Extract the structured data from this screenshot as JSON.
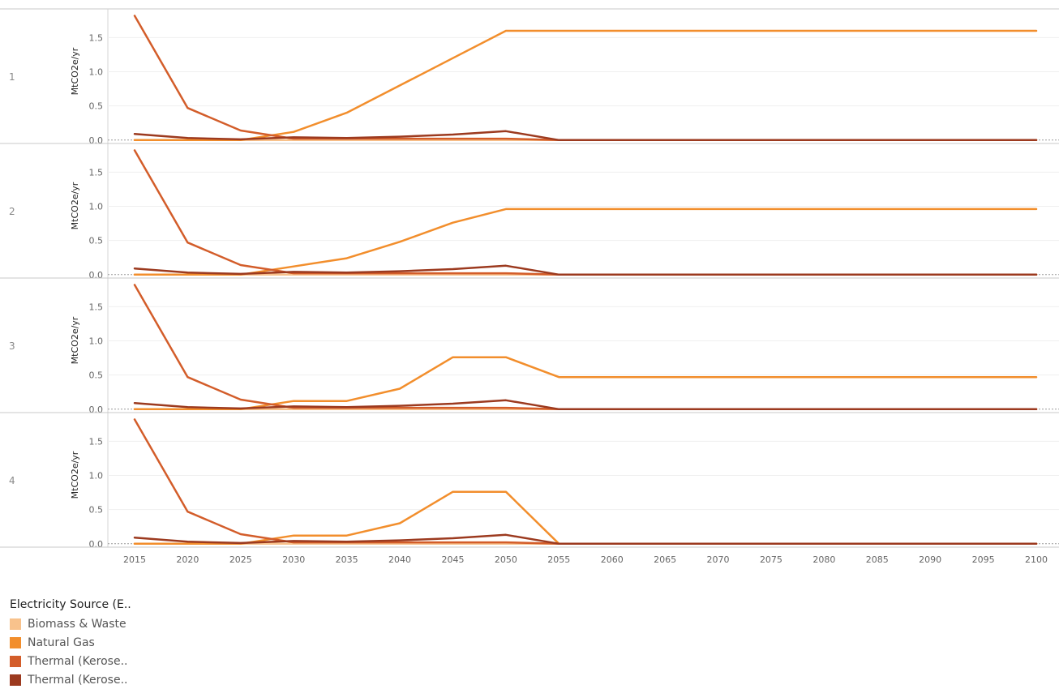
{
  "chart_data": {
    "type": "line",
    "ylabel": "MtCO2e/yr",
    "yticks": [
      0.0,
      0.5,
      1.0,
      1.5
    ],
    "ytick_labels": [
      "0.0",
      "0.5",
      "1.0",
      "1.5"
    ],
    "ylim": [
      -0.05,
      1.92
    ],
    "x": [
      2015,
      2020,
      2025,
      2030,
      2035,
      2040,
      2045,
      2050,
      2055,
      2060,
      2065,
      2070,
      2075,
      2080,
      2085,
      2090,
      2095,
      2100
    ],
    "x_tick_labels": [
      "2015",
      "2020",
      "2025",
      "2030",
      "2035",
      "2040",
      "2045",
      "2050",
      "2055",
      "2060",
      "2065",
      "2070",
      "2075",
      "2080",
      "2085",
      "2090",
      "2095",
      "2100"
    ],
    "grid": true,
    "legend": {
      "title": "Electricity Source (E..",
      "position": "bottom-left",
      "entries": [
        {
          "label": "Biomass & Waste",
          "color": "#f8c28c"
        },
        {
          "label": "Natural Gas",
          "color": "#f28e2c"
        },
        {
          "label": "Thermal (Kerose..",
          "color": "#d35d2a"
        },
        {
          "label": "Thermal (Kerose..",
          "color": "#9c3a1f"
        }
      ]
    },
    "panels": [
      {
        "row_label": "1",
        "series": [
          {
            "color": "#f8c28c",
            "values": [
              0,
              0,
              0,
              0,
              0,
              0,
              0,
              0,
              0,
              0,
              0,
              0,
              0,
              0,
              0,
              0,
              0,
              0
            ]
          },
          {
            "color": "#f28e2c",
            "values": [
              0,
              0,
              0,
              0.12,
              0.4,
              0.8,
              1.2,
              1.6,
              1.6,
              1.6,
              1.6,
              1.6,
              1.6,
              1.6,
              1.6,
              1.6,
              1.6,
              1.6
            ]
          },
          {
            "color": "#d35d2a",
            "values": [
              1.82,
              0.47,
              0.14,
              0.02,
              0.02,
              0.02,
              0.02,
              0.02,
              0,
              0,
              0,
              0,
              0,
              0,
              0,
              0,
              0,
              0
            ]
          },
          {
            "color": "#9c3a1f",
            "values": [
              0.09,
              0.03,
              0.01,
              0.04,
              0.03,
              0.05,
              0.08,
              0.13,
              0,
              0,
              0,
              0,
              0,
              0,
              0,
              0,
              0,
              0
            ]
          }
        ]
      },
      {
        "row_label": "2",
        "series": [
          {
            "color": "#f8c28c",
            "values": [
              0,
              0,
              0,
              0,
              0,
              0,
              0,
              0,
              0,
              0,
              0,
              0,
              0,
              0,
              0,
              0,
              0,
              0
            ]
          },
          {
            "color": "#f28e2c",
            "values": [
              0,
              0,
              0,
              0.12,
              0.24,
              0.48,
              0.76,
              0.96,
              0.96,
              0.96,
              0.96,
              0.96,
              0.96,
              0.96,
              0.96,
              0.96,
              0.96,
              0.96
            ]
          },
          {
            "color": "#d35d2a",
            "values": [
              1.82,
              0.47,
              0.14,
              0.02,
              0.02,
              0.02,
              0.02,
              0.02,
              0,
              0,
              0,
              0,
              0,
              0,
              0,
              0,
              0,
              0
            ]
          },
          {
            "color": "#9c3a1f",
            "values": [
              0.09,
              0.03,
              0.01,
              0.04,
              0.03,
              0.05,
              0.08,
              0.13,
              0,
              0,
              0,
              0,
              0,
              0,
              0,
              0,
              0,
              0
            ]
          }
        ]
      },
      {
        "row_label": "3",
        "series": [
          {
            "color": "#f8c28c",
            "values": [
              0,
              0,
              0,
              0,
              0,
              0,
              0,
              0,
              0,
              0,
              0,
              0,
              0,
              0,
              0,
              0,
              0,
              0
            ]
          },
          {
            "color": "#f28e2c",
            "values": [
              0,
              0,
              0,
              0.12,
              0.12,
              0.3,
              0.76,
              0.76,
              0.47,
              0.47,
              0.47,
              0.47,
              0.47,
              0.47,
              0.47,
              0.47,
              0.47,
              0.47
            ]
          },
          {
            "color": "#d35d2a",
            "values": [
              1.82,
              0.47,
              0.14,
              0.02,
              0.02,
              0.02,
              0.02,
              0.02,
              0,
              0,
              0,
              0,
              0,
              0,
              0,
              0,
              0,
              0
            ]
          },
          {
            "color": "#9c3a1f",
            "values": [
              0.09,
              0.03,
              0.01,
              0.04,
              0.03,
              0.05,
              0.08,
              0.13,
              0,
              0,
              0,
              0,
              0,
              0,
              0,
              0,
              0,
              0
            ]
          }
        ]
      },
      {
        "row_label": "4",
        "series": [
          {
            "color": "#f8c28c",
            "values": [
              0,
              0,
              0,
              0,
              0,
              0,
              0,
              0,
              0,
              0,
              0,
              0,
              0,
              0,
              0,
              0,
              0,
              0
            ]
          },
          {
            "color": "#f28e2c",
            "values": [
              0,
              0,
              0,
              0.12,
              0.12,
              0.3,
              0.76,
              0.76,
              0,
              0,
              0,
              0,
              0,
              0,
              0,
              0,
              0,
              0
            ]
          },
          {
            "color": "#d35d2a",
            "values": [
              1.82,
              0.47,
              0.14,
              0.02,
              0.02,
              0.02,
              0.02,
              0.02,
              0,
              0,
              0,
              0,
              0,
              0,
              0,
              0,
              0,
              0
            ]
          },
          {
            "color": "#9c3a1f",
            "values": [
              0.09,
              0.03,
              0.01,
              0.04,
              0.03,
              0.05,
              0.08,
              0.13,
              0,
              0,
              0,
              0,
              0,
              0,
              0,
              0,
              0,
              0
            ]
          }
        ]
      }
    ]
  }
}
